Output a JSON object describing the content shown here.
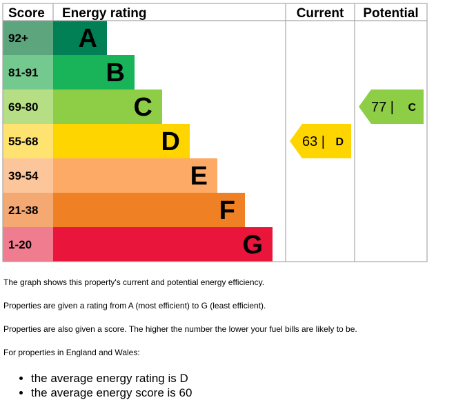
{
  "chart_data": {
    "type": "bar",
    "headers": {
      "score": "Score",
      "rating": "Energy rating",
      "current": "Current",
      "potential": "Potential"
    },
    "bands": [
      {
        "score": "92+",
        "letter": "A",
        "color": "#008054",
        "score_bg": "#5da57d"
      },
      {
        "score": "81-91",
        "letter": "B",
        "color": "#19b459",
        "score_bg": "#74c98f"
      },
      {
        "score": "69-80",
        "letter": "C",
        "color": "#8dce46",
        "score_bg": "#b6df85"
      },
      {
        "score": "55-68",
        "letter": "D",
        "color": "#ffd500",
        "score_bg": "#ffe371"
      },
      {
        "score": "39-54",
        "letter": "E",
        "color": "#fcaa65",
        "score_bg": "#fdc69a"
      },
      {
        "score": "21-38",
        "letter": "F",
        "color": "#ef8023",
        "score_bg": "#f4a872"
      },
      {
        "score": "1-20",
        "letter": "G",
        "color": "#e9153b",
        "score_bg": "#f07d8f"
      }
    ],
    "current": {
      "value": 63,
      "letter": "D",
      "label": "63 |",
      "color": "#ffd500"
    },
    "potential": {
      "value": 77,
      "letter": "C",
      "label": "77 |",
      "color": "#8dce46"
    }
  },
  "text": {
    "p1": "The graph shows this property's current and potential energy efficiency.",
    "p2": "Properties are given a rating from A (most efficient) to G (least efficient).",
    "p3": "Properties are also given a score. The higher the number the lower your fuel bills are likely to be.",
    "p4": "For properties in England and Wales:",
    "bullets": [
      "the average energy rating is D",
      "the average energy score is 60"
    ]
  }
}
